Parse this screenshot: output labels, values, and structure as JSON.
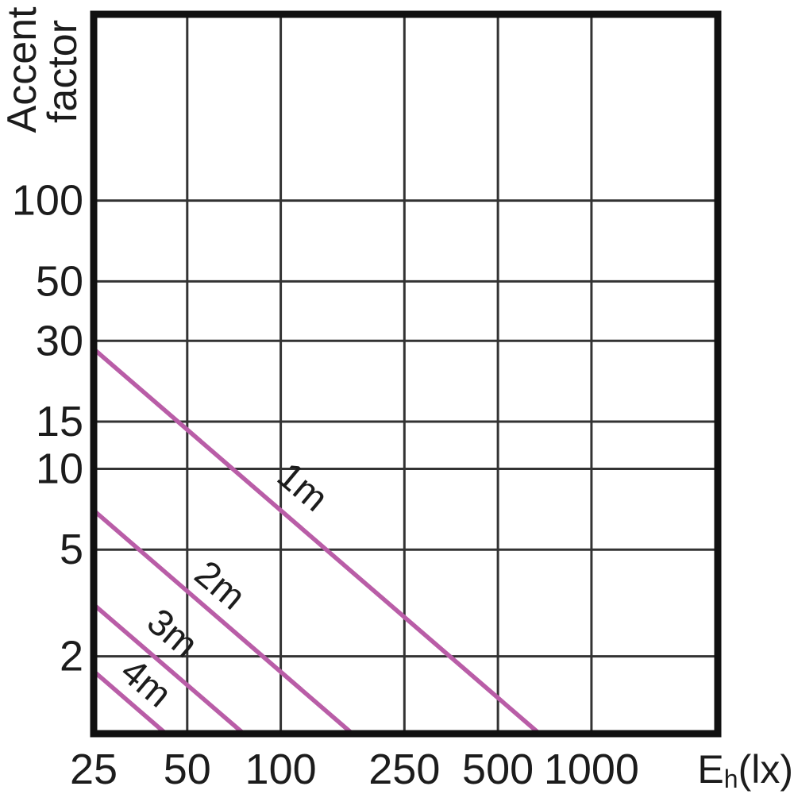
{
  "figure": {
    "description": "Log-log chart of accent factor versus horizontal illuminance for spotlight distances 1m to 4m",
    "background": "#ffffff"
  },
  "chart_data": {
    "type": "line",
    "title": "",
    "x_axis": {
      "label_main": "E",
      "label_sub": "h",
      "label_suffix": "(lx)",
      "scale": "log",
      "ticks": [
        25,
        50,
        100,
        250,
        500,
        1000
      ],
      "tick_labels": [
        "25",
        "50",
        "100",
        "250",
        "500",
        "1000"
      ],
      "range": [
        25,
        2550
      ],
      "grid": true
    },
    "y_axis": {
      "label": "Accent factor",
      "label_lines": [
        "Accent",
        "factor"
      ],
      "scale": "log",
      "ticks": [
        100,
        50,
        30,
        15,
        10,
        5,
        2
      ],
      "tick_labels": [
        "100",
        "50",
        "30",
        "15",
        "10",
        "5",
        "2"
      ],
      "range": [
        1.03,
        495
      ],
      "grid": true
    },
    "series": [
      {
        "name": "1m",
        "relation": "accent_factor = 700 / E",
        "E_times_factor": 700,
        "points": [
          [
            25,
            28
          ],
          [
            680,
            1.03
          ]
        ],
        "label_at": {
          "E": 118,
          "factor": 8.6
        },
        "label_rotation": 40
      },
      {
        "name": "2m",
        "relation": "accent_factor = 175 / E",
        "E_times_factor": 175,
        "points": [
          [
            25,
            7.0
          ],
          [
            170,
            1.03
          ]
        ],
        "label_at": {
          "E": 64,
          "factor": 3.7
        },
        "label_rotation": 40
      },
      {
        "name": "3m",
        "relation": "accent_factor = 78 / E",
        "E_times_factor": 78,
        "points": [
          [
            25,
            3.12
          ],
          [
            76,
            1.03
          ]
        ],
        "label_at": {
          "E": 45,
          "factor": 2.45
        },
        "label_rotation": 40
      },
      {
        "name": "4m",
        "relation": "accent_factor = 44 / E",
        "E_times_factor": 44,
        "points": [
          [
            25,
            1.76
          ],
          [
            42.7,
            1.03
          ]
        ],
        "label_at": {
          "E": 37,
          "factor": 1.6
        },
        "label_rotation": 40
      }
    ],
    "legend_position": "on-line-labels",
    "colors": {
      "series_line": "#b95da7",
      "grid": "#333333",
      "axis_border": "#111111",
      "text": "#1c1c1c",
      "background": "#ffffff"
    }
  }
}
